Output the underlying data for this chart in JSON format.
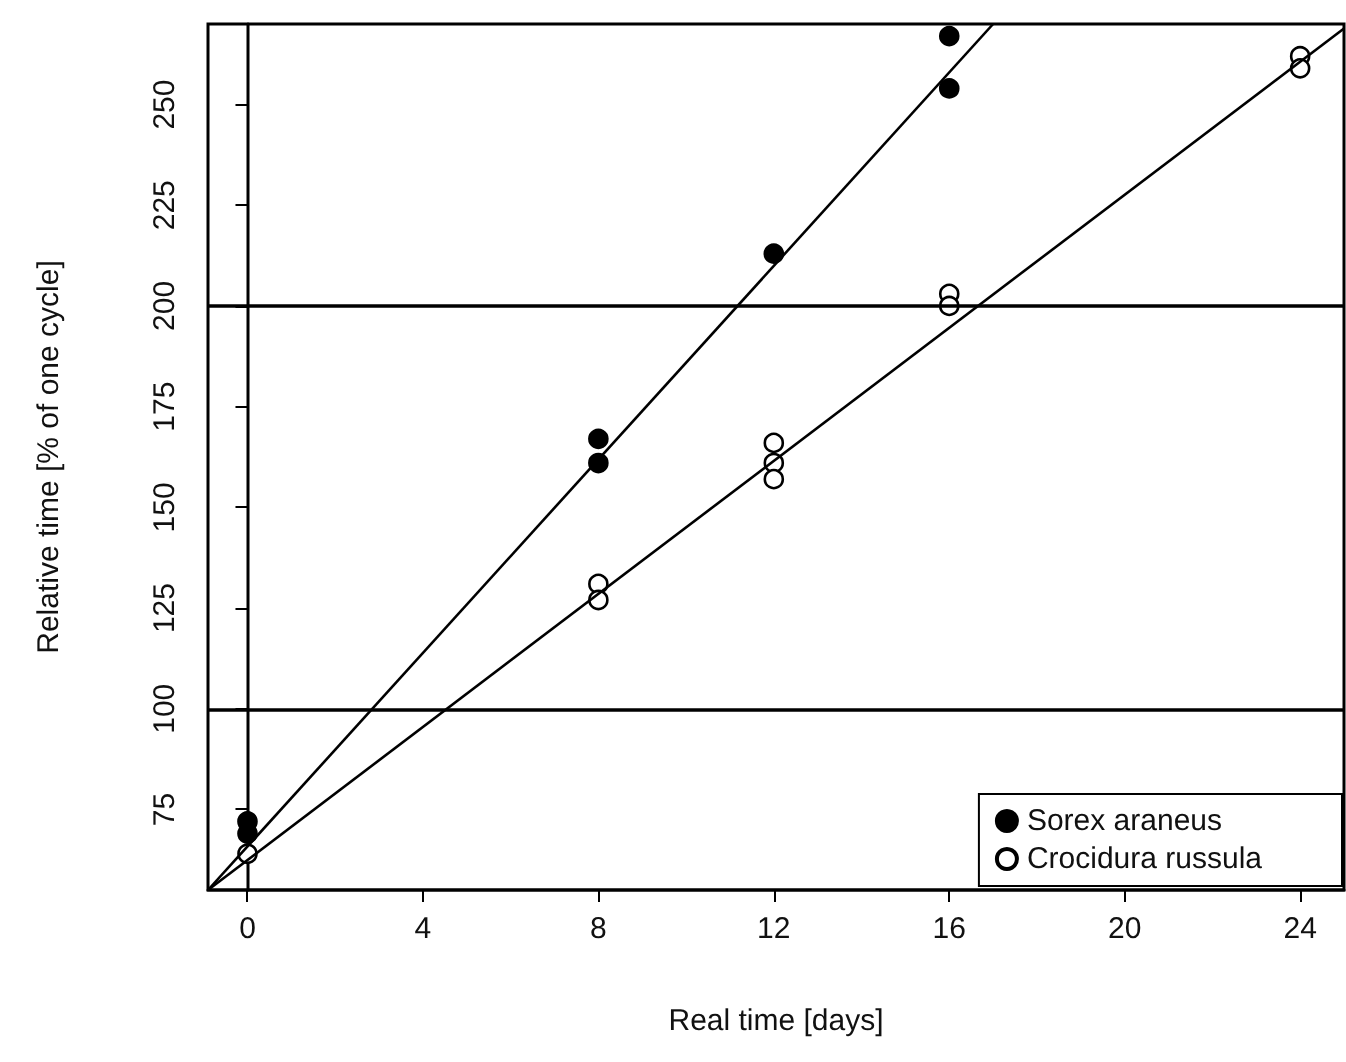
{
  "chart_data": {
    "type": "scatter",
    "xlabel": "Real time [days]",
    "ylabel": "Relative time [% of one cycle]",
    "xlim": [
      -0.9,
      25
    ],
    "xticks": [
      0,
      4,
      8,
      12,
      16,
      20,
      24
    ],
    "ylim": [
      55,
      270
    ],
    "yticks": [
      75,
      100,
      125,
      150,
      175,
      200,
      225,
      250
    ],
    "grid": false,
    "legend": "bottom right",
    "marker": "circle",
    "series": [
      {
        "name": "Sorex araneus",
        "color": "#000000",
        "x": [
          0,
          0,
          8,
          8,
          12,
          16,
          16
        ],
        "values": [
          72,
          69,
          167,
          161,
          213,
          267,
          254
        ]
      },
      {
        "name": "Crocidura russula",
        "color": "#ffffff",
        "x": [
          0,
          8,
          8,
          12,
          12,
          12,
          16,
          16,
          24,
          24
        ],
        "values": [
          64,
          131,
          127,
          166,
          161,
          157,
          203,
          200,
          262,
          259
        ]
      },
      {
        "type": "line",
        "color": "#000000",
        "marker": "none",
        "x": [
          -0.9,
          17
        ],
        "values": [
          55,
          270
        ]
      },
      {
        "type": "line",
        "color": "#000000",
        "marker": "none",
        "x": [
          -0.9,
          25
        ],
        "values": [
          55,
          268.9
        ]
      }
    ],
    "ref_lines": [
      {
        "axis": "y",
        "value": 100,
        "label": null,
        "color": "#000000"
      },
      {
        "axis": "y",
        "value": 200,
        "label": null,
        "color": "#000000"
      }
    ]
  }
}
